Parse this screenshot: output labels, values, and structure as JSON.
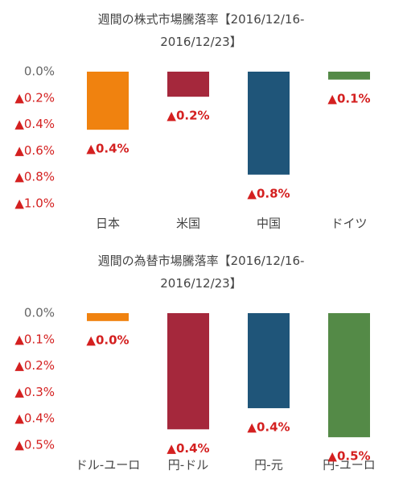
{
  "chart_data": [
    {
      "type": "bar",
      "title": "週間の株式市場騰落率【2016/12/16-2016/12/23】",
      "categories": [
        "日本",
        "米国",
        "中国",
        "ドイツ"
      ],
      "series": [
        {
          "values": [
            -0.44,
            -0.19,
            -0.78,
            -0.06
          ],
          "value_labels": [
            "▲0.4%",
            "▲0.2%",
            "▲0.8%",
            "▲0.1%"
          ],
          "colors": [
            "#f0820f",
            "#a5283c",
            "#1f5579",
            "#548a47"
          ]
        }
      ],
      "ylim": [
        -1.0,
        0
      ],
      "yticks": [
        {
          "value": 0,
          "label": "0.0%"
        },
        {
          "value": -0.2,
          "label": "▲0.2%"
        },
        {
          "value": -0.4,
          "label": "▲0.4%"
        },
        {
          "value": -0.6,
          "label": "▲0.6%"
        },
        {
          "value": -0.8,
          "label": "▲0.8%"
        },
        {
          "value": -1.0,
          "label": "▲1.0%"
        }
      ],
      "grid": false
    },
    {
      "type": "bar",
      "title": "週間の為替市場騰落率【2016/12/16-2016/12/23】",
      "categories": [
        "ドル-ユーロ",
        "円-ドル",
        "円-元",
        "円-ユーロ"
      ],
      "series": [
        {
          "values": [
            -0.03,
            -0.44,
            -0.36,
            -0.47
          ],
          "value_labels": [
            "▲0.0%",
            "▲0.4%",
            "▲0.4%",
            "▲0.5%"
          ],
          "colors": [
            "#f0820f",
            "#a5283c",
            "#1f5579",
            "#548a47"
          ]
        }
      ],
      "ylim": [
        -0.5,
        0
      ],
      "yticks": [
        {
          "value": 0,
          "label": "0.0%"
        },
        {
          "value": -0.1,
          "label": "▲0.1%"
        },
        {
          "value": -0.2,
          "label": "▲0.2%"
        },
        {
          "value": -0.3,
          "label": "▲0.3%"
        },
        {
          "value": -0.4,
          "label": "▲0.4%"
        },
        {
          "value": -0.5,
          "label": "▲0.5%"
        }
      ],
      "grid": false
    }
  ]
}
